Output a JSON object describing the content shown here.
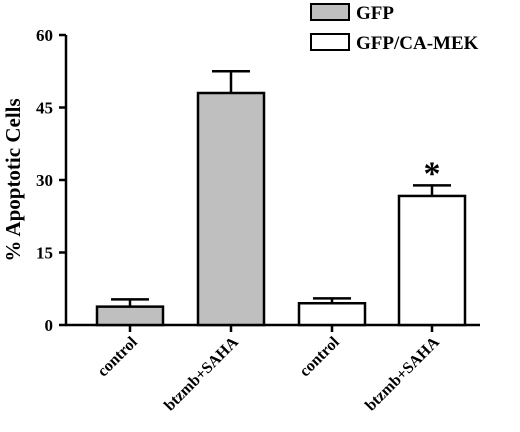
{
  "chart_data": {
    "type": "bar",
    "ylabel": "% Apoptotic Cells",
    "ylim": [
      0,
      60
    ],
    "yticks": [
      0,
      15,
      30,
      45,
      60
    ],
    "categories": [
      "control",
      "btzmb+SAHA",
      "control",
      "btzmb+SAHA"
    ],
    "series": [
      {
        "name": "GFP",
        "color": "#bfbfbf",
        "bars": [
          {
            "category_index": 0,
            "value": 3.8,
            "error": 1.5
          },
          {
            "category_index": 1,
            "value": 48.0,
            "error": 4.5
          }
        ]
      },
      {
        "name": "GFP/CA-MEK",
        "color": "#ffffff",
        "bars": [
          {
            "category_index": 2,
            "value": 4.5,
            "error": 1.0
          },
          {
            "category_index": 3,
            "value": 26.7,
            "error": 2.2
          }
        ]
      }
    ],
    "annotations": [
      {
        "text": "*",
        "category_index": 3
      }
    ],
    "legend_position": "top-right"
  }
}
